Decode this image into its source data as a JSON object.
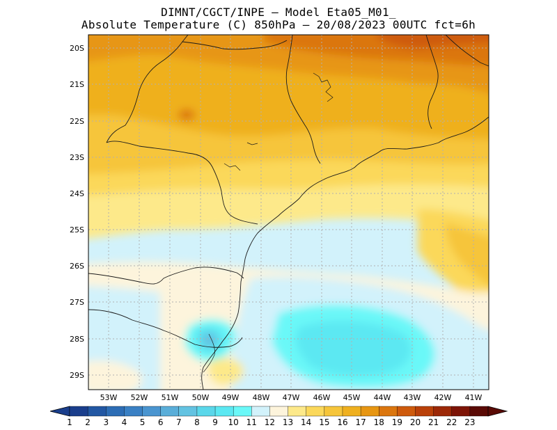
{
  "header": {
    "line1": "DIMNT/CGCT/INPE –  Model Eta05_M01_",
    "line2": "Absolute Temperature (C) 850hPa –  20/08/2023 00UTC fct=6h"
  },
  "map": {
    "lat_labels": [
      "20S",
      "21S",
      "22S",
      "23S",
      "24S",
      "25S",
      "26S",
      "27S",
      "28S",
      "29S"
    ],
    "lon_labels": [
      "53W",
      "52W",
      "51W",
      "50W",
      "49W",
      "48W",
      "47W",
      "46W",
      "45W",
      "44W",
      "43W",
      "42W",
      "41W"
    ]
  },
  "colorbar": {
    "labels": [
      "1",
      "2",
      "3",
      "4",
      "5",
      "6",
      "7",
      "8",
      "9",
      "10",
      "11",
      "12",
      "13",
      "14",
      "15",
      "16",
      "17",
      "18",
      "19",
      "20",
      "21",
      "22",
      "23"
    ],
    "colors": [
      "#1a3e8c",
      "#2257a3",
      "#2d6db5",
      "#3a80c4",
      "#4a95d0",
      "#5aaed9",
      "#63c3e2",
      "#5ad7ea",
      "#5be8f2",
      "#6af8f8",
      "#d2f2fb",
      "#fdf4dc",
      "#fde98a",
      "#fbd85a",
      "#f6c53a",
      "#efb01f",
      "#e79612",
      "#db760e",
      "#ce5a0c",
      "#b94009",
      "#9c2807",
      "#7d1406",
      "#5a0a05"
    ],
    "left_arrow_color": "#1a3e8c",
    "right_arrow_color": "#5a0a05"
  }
}
